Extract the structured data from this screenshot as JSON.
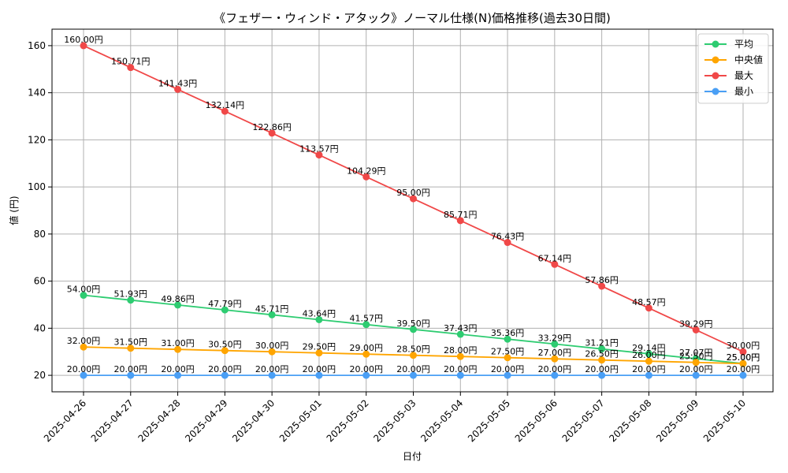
{
  "chart_data": {
    "type": "line",
    "title": "《フェザー・ウィンド・アタック》ノーマル仕様(N)価格推移(過去30日間)",
    "xlabel": "日付",
    "ylabel": "値 (円)",
    "ylim": [
      13,
      167
    ],
    "yticks": [
      20,
      40,
      60,
      80,
      100,
      120,
      140,
      160
    ],
    "grid": true,
    "legend_position": "top-right",
    "value_suffix": "円",
    "categories": [
      "2025-04-26",
      "2025-04-27",
      "2025-04-28",
      "2025-04-29",
      "2025-04-30",
      "2025-05-01",
      "2025-05-02",
      "2025-05-03",
      "2025-05-04",
      "2025-05-05",
      "2025-05-06",
      "2025-05-07",
      "2025-05-08",
      "2025-05-09",
      "2025-05-10"
    ],
    "series": [
      {
        "name": "平均",
        "color": "#2ecc71",
        "values": [
          54.0,
          51.93,
          49.86,
          47.79,
          45.71,
          43.64,
          41.57,
          39.5,
          37.43,
          35.36,
          33.29,
          31.21,
          29.14,
          27.07,
          25.0
        ]
      },
      {
        "name": "中央値",
        "color": "#ffa500",
        "values": [
          32.0,
          31.5,
          31.0,
          30.5,
          30.0,
          29.5,
          29.0,
          28.5,
          28.0,
          27.5,
          27.0,
          26.5,
          26.0,
          25.5,
          25.0
        ]
      },
      {
        "name": "最大",
        "color": "#f04848",
        "values": [
          160.0,
          150.71,
          141.43,
          132.14,
          122.86,
          113.57,
          104.29,
          95.0,
          85.71,
          76.43,
          67.14,
          57.86,
          48.57,
          39.29,
          30.0
        ]
      },
      {
        "name": "最小",
        "color": "#4a9ff5",
        "values": [
          20.0,
          20.0,
          20.0,
          20.0,
          20.0,
          20.0,
          20.0,
          20.0,
          20.0,
          20.0,
          20.0,
          20.0,
          20.0,
          20.0,
          20.0
        ]
      }
    ]
  }
}
